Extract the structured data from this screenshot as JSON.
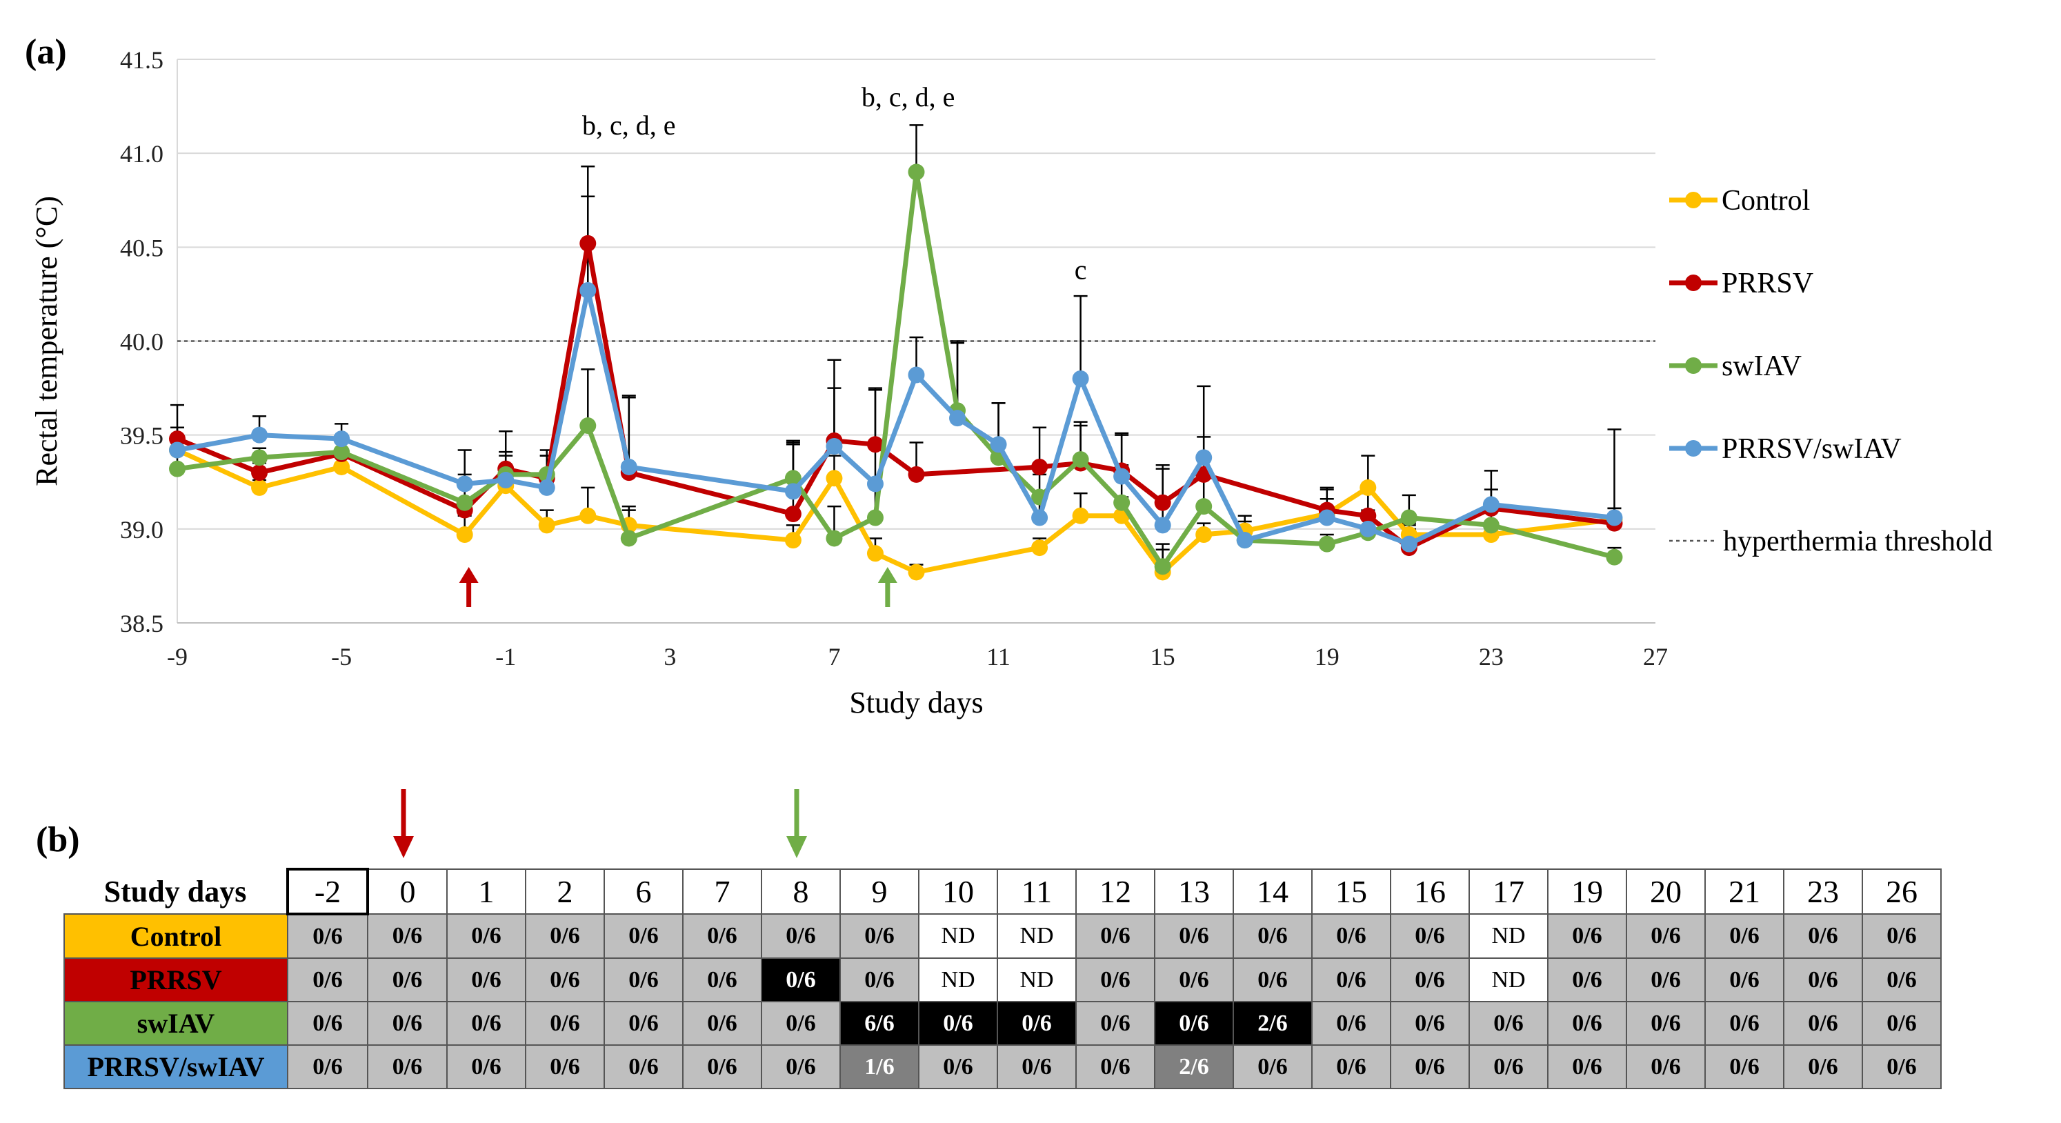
{
  "chart_data": {
    "type": "line",
    "panel_a_label": "(a)",
    "ylabel": "Rectal temperature (°C)",
    "xlabel": "Study days",
    "ylim": [
      38.5,
      41.5
    ],
    "xlim": [
      -9,
      27
    ],
    "y_ticks": [
      "38.5",
      "39.0",
      "39.5",
      "40.0",
      "40.5",
      "41.0",
      "41.5"
    ],
    "x_ticks": [
      "-9",
      "-5",
      "-1",
      "3",
      "7",
      "11",
      "15",
      "19",
      "23",
      "27"
    ],
    "threshold": 40.0,
    "threshold_label": "hyperthermia threshold",
    "annotations": [
      {
        "text": "b, c, d, e",
        "x": 2,
        "y": 41.1
      },
      {
        "text": "b, c, d, e",
        "x": 8.8,
        "y": 41.25
      },
      {
        "text": "c",
        "x": 13,
        "y": 40.33
      }
    ],
    "inoculation_arrows": [
      {
        "x": -1.9,
        "color": "#c00000"
      },
      {
        "x": 8.3,
        "color": "#70ad47"
      }
    ],
    "series": [
      {
        "name": "Control",
        "color": "#ffc000",
        "points": [
          [
            -9,
            39.42
          ],
          [
            -7,
            39.22
          ],
          [
            -5,
            39.33
          ],
          [
            -2,
            38.97
          ],
          [
            -1,
            39.23
          ],
          [
            0,
            39.02
          ],
          [
            1,
            39.07
          ],
          [
            2,
            39.02
          ],
          [
            6,
            38.94
          ],
          [
            7,
            39.27
          ],
          [
            8,
            38.87
          ],
          [
            9,
            38.77
          ],
          [
            12,
            38.9
          ],
          [
            13,
            39.07
          ],
          [
            14,
            39.07
          ],
          [
            15,
            38.77
          ],
          [
            16,
            38.97
          ],
          [
            17,
            38.99
          ],
          [
            19,
            39.08
          ],
          [
            20,
            39.22
          ],
          [
            21,
            38.97
          ],
          [
            23,
            38.97
          ],
          [
            26,
            39.05
          ]
        ],
        "errors": [
          0.05,
          0.04,
          0.05,
          0.1,
          0.05,
          0.08,
          0.15,
          0.1,
          0.08,
          0.12,
          0.08,
          0.04,
          0.05,
          0.12,
          0.1,
          0.12,
          0.06,
          0.05,
          0.08,
          0.17,
          0.06,
          0.05,
          0.06
        ]
      },
      {
        "name": "PRRSV",
        "color": "#c00000",
        "points": [
          [
            -9,
            39.48
          ],
          [
            -7,
            39.3
          ],
          [
            -5,
            39.4
          ],
          [
            -2,
            39.1
          ],
          [
            -1,
            39.32
          ],
          [
            0,
            39.27
          ],
          [
            1,
            40.52
          ],
          [
            2,
            39.3
          ],
          [
            6,
            39.08
          ],
          [
            7,
            39.47
          ],
          [
            8,
            39.45
          ],
          [
            9,
            39.29
          ],
          [
            12,
            39.33
          ],
          [
            13,
            39.35
          ],
          [
            14,
            39.31
          ],
          [
            15,
            39.14
          ],
          [
            16,
            39.29
          ],
          [
            19,
            39.1
          ],
          [
            20,
            39.07
          ],
          [
            21,
            38.9
          ],
          [
            23,
            39.11
          ],
          [
            26,
            39.03
          ]
        ],
        "errors": [
          0.18,
          0.05,
          0.06,
          0.15,
          0.2,
          0.12,
          0.41,
          0.4,
          0.38,
          0.43,
          0.3,
          0.17,
          0.21,
          0.2,
          0.2,
          0.2,
          0.2,
          0.12,
          0.12,
          0.1,
          0.1,
          0.08
        ]
      },
      {
        "name": "swIAV",
        "color": "#70ad47",
        "points": [
          [
            -9,
            39.32
          ],
          [
            -7,
            39.38
          ],
          [
            -5,
            39.41
          ],
          [
            -2,
            39.14
          ],
          [
            -1,
            39.29
          ],
          [
            0,
            39.29
          ],
          [
            1,
            39.55
          ],
          [
            2,
            38.95
          ],
          [
            6,
            39.27
          ],
          [
            7,
            38.95
          ],
          [
            8,
            39.06
          ],
          [
            9,
            40.9
          ],
          [
            10,
            39.63
          ],
          [
            11,
            39.38
          ],
          [
            12,
            39.17
          ],
          [
            13,
            39.37
          ],
          [
            14,
            39.14
          ],
          [
            15,
            38.8
          ],
          [
            16,
            39.12
          ],
          [
            17,
            38.94
          ],
          [
            19,
            38.92
          ],
          [
            20,
            38.98
          ],
          [
            21,
            39.06
          ],
          [
            23,
            39.02
          ],
          [
            26,
            38.85
          ]
        ],
        "errors": [
          0.1,
          0.05,
          0.05,
          0.15,
          0.1,
          0.1,
          0.3,
          0.15,
          0.2,
          0.17,
          0.17,
          0.25,
          0.37,
          0.29,
          0.12,
          0.2,
          0.2,
          0.12,
          0.17,
          0.05,
          0.05,
          0.08,
          0.12,
          0.1,
          0.05
        ]
      },
      {
        "name": "PRRSV/swIAV",
        "color": "#5b9bd5",
        "points": [
          [
            -9,
            39.42
          ],
          [
            -7,
            39.5
          ],
          [
            -5,
            39.48
          ],
          [
            -2,
            39.24
          ],
          [
            -1,
            39.26
          ],
          [
            0,
            39.22
          ],
          [
            1,
            40.27
          ],
          [
            2,
            39.33
          ],
          [
            6,
            39.2
          ],
          [
            7,
            39.44
          ],
          [
            8,
            39.24
          ],
          [
            9,
            39.82
          ],
          [
            10,
            39.59
          ],
          [
            11,
            39.45
          ],
          [
            12,
            39.06
          ],
          [
            13,
            39.8
          ],
          [
            14,
            39.28
          ],
          [
            15,
            39.02
          ],
          [
            16,
            39.38
          ],
          [
            17,
            38.94
          ],
          [
            19,
            39.06
          ],
          [
            20,
            39.0
          ],
          [
            21,
            38.92
          ],
          [
            23,
            39.13
          ],
          [
            26,
            39.06
          ]
        ],
        "errors": [
          0.12,
          0.1,
          0.08,
          0.18,
          0.15,
          0.2,
          0.5,
          0.38,
          0.25,
          0.31,
          0.5,
          0.2,
          0.4,
          0.22,
          0.12,
          0.44,
          0.22,
          0.3,
          0.38,
          0.13,
          0.15,
          0.1,
          0.1,
          0.18,
          0.47
        ]
      }
    ]
  },
  "panel_b": {
    "label": "(b)",
    "header_label": "Study days",
    "days": [
      "-2",
      "0",
      "1",
      "2",
      "6",
      "7",
      "8",
      "9",
      "10",
      "11",
      "12",
      "13",
      "14",
      "15",
      "16",
      "17",
      "19",
      "20",
      "21",
      "23",
      "26"
    ],
    "arrows": [
      {
        "day_index": 1,
        "color": "#c00000"
      },
      {
        "day_index": 6,
        "color": "#70ad47"
      }
    ],
    "colors": {
      "grey": "#bfbfbf",
      "black": "#000000",
      "dark": "#808080",
      "white": "#ffffff"
    },
    "rows": [
      {
        "name": "Control",
        "bg": "#ffc000",
        "fg": "#000000",
        "cells": [
          "0/6",
          "0/6",
          "0/6",
          "0/6",
          "0/6",
          "0/6",
          "0/6",
          "0/6",
          "ND",
          "ND",
          "0/6",
          "0/6",
          "0/6",
          "0/6",
          "0/6",
          "ND",
          "0/6",
          "0/6",
          "0/6",
          "0/6",
          "0/6"
        ],
        "shade": [
          "g",
          "g",
          "g",
          "g",
          "g",
          "g",
          "g",
          "g",
          "w",
          "w",
          "g",
          "g",
          "g",
          "g",
          "g",
          "w",
          "g",
          "g",
          "g",
          "g",
          "g"
        ]
      },
      {
        "name": "PRRSV",
        "bg": "#c00000",
        "fg": "#000000",
        "cells": [
          "0/6",
          "0/6",
          "0/6",
          "0/6",
          "0/6",
          "0/6",
          "0/6",
          "0/6",
          "ND",
          "ND",
          "0/6",
          "0/6",
          "0/6",
          "0/6",
          "0/6",
          "ND",
          "0/6",
          "0/6",
          "0/6",
          "0/6",
          "0/6"
        ],
        "shade": [
          "g",
          "g",
          "g",
          "g",
          "g",
          "g",
          "b",
          "g",
          "w",
          "w",
          "g",
          "g",
          "g",
          "g",
          "g",
          "w",
          "g",
          "g",
          "g",
          "g",
          "g"
        ]
      },
      {
        "name": "swIAV",
        "bg": "#70ad47",
        "fg": "#000000",
        "cells": [
          "0/6",
          "0/6",
          "0/6",
          "0/6",
          "0/6",
          "0/6",
          "0/6",
          "6/6",
          "0/6",
          "0/6",
          "0/6",
          "0/6",
          "2/6",
          "0/6",
          "0/6",
          "0/6",
          "0/6",
          "0/6",
          "0/6",
          "0/6",
          "0/6"
        ],
        "shade": [
          "g",
          "g",
          "g",
          "g",
          "g",
          "g",
          "g",
          "b",
          "b",
          "b",
          "g",
          "b",
          "b",
          "g",
          "g",
          "g",
          "g",
          "g",
          "g",
          "g",
          "g"
        ]
      },
      {
        "name": "PRRSV/swIAV",
        "bg": "#5b9bd5",
        "fg": "#000000",
        "cells": [
          "0/6",
          "0/6",
          "0/6",
          "0/6",
          "0/6",
          "0/6",
          "0/6",
          "1/6",
          "0/6",
          "0/6",
          "0/6",
          "2/6",
          "0/6",
          "0/6",
          "0/6",
          "0/6",
          "0/6",
          "0/6",
          "0/6",
          "0/6",
          "0/6"
        ],
        "shade": [
          "g",
          "g",
          "g",
          "g",
          "g",
          "g",
          "g",
          "d",
          "g",
          "g",
          "g",
          "d",
          "g",
          "g",
          "g",
          "g",
          "g",
          "g",
          "g",
          "g",
          "g"
        ]
      }
    ]
  }
}
